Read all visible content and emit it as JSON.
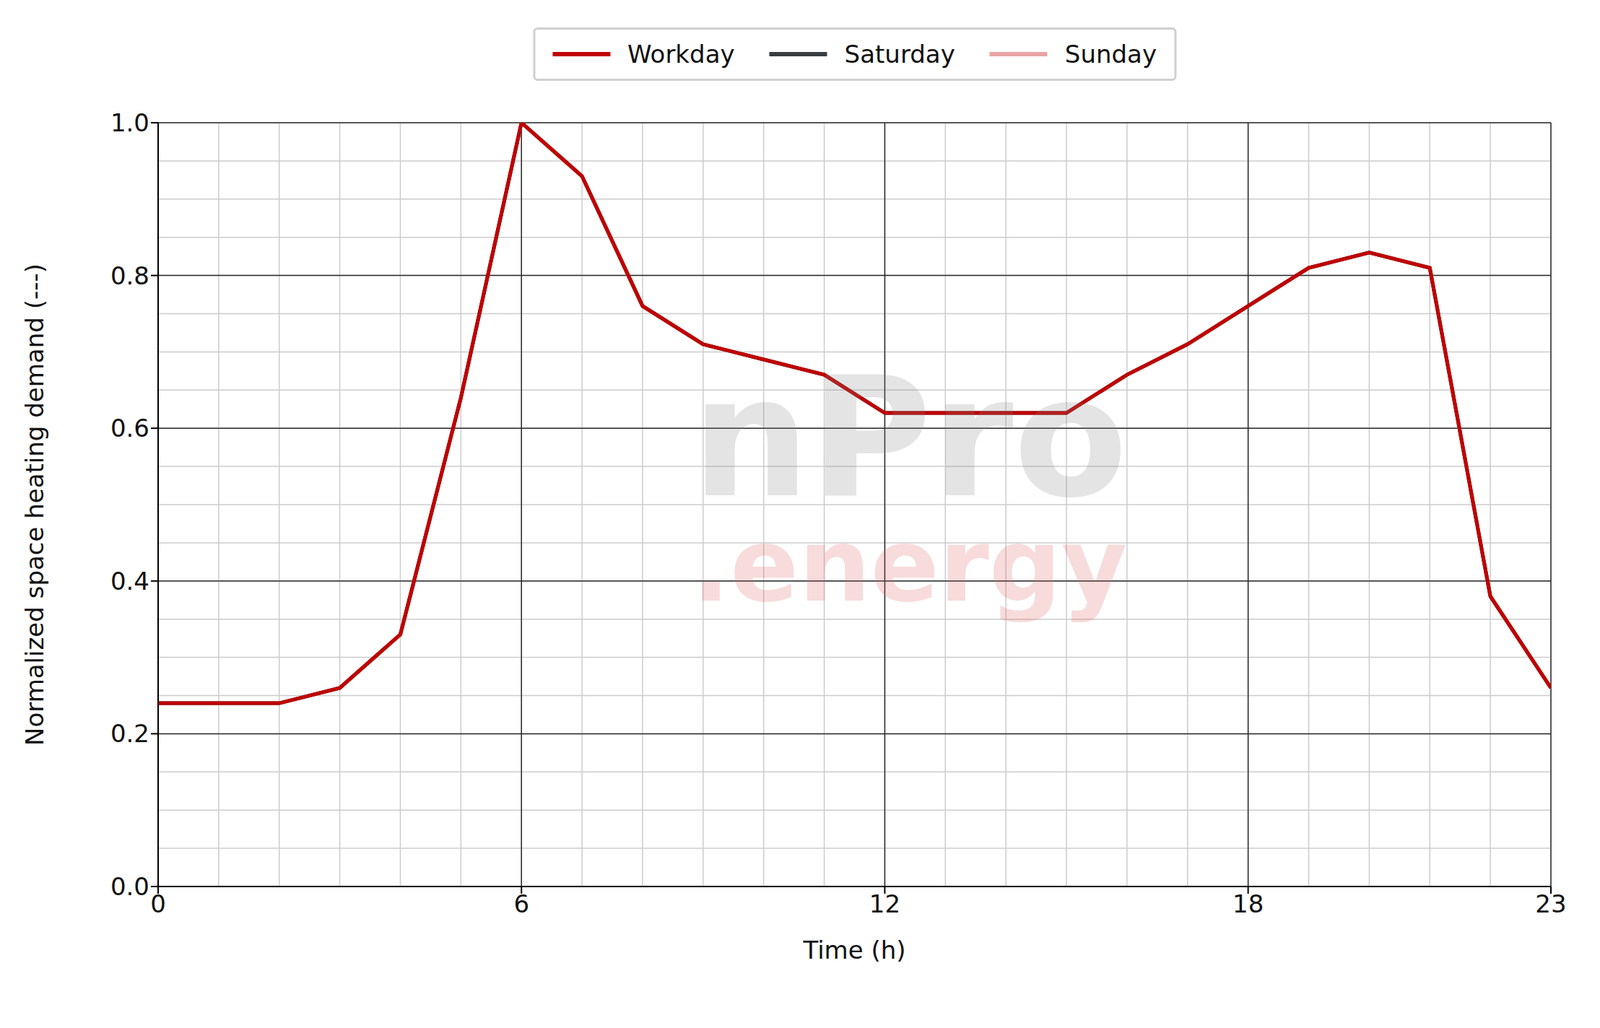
{
  "chart_data": {
    "type": "line",
    "x_label": "Time (h)",
    "y_label": "Normalized space heating demand (---)",
    "annotations": [
      "nPro",
      ".energy"
    ],
    "x": [
      0,
      1,
      2,
      3,
      4,
      5,
      6,
      7,
      8,
      9,
      10,
      11,
      12,
      13,
      14,
      15,
      16,
      17,
      18,
      19,
      20,
      21,
      22,
      23
    ],
    "series": [
      {
        "name": "Workday",
        "color": "#c00000",
        "values": [
          0.24,
          0.24,
          0.24,
          0.26,
          0.33,
          0.64,
          1.0,
          0.93,
          0.76,
          0.71,
          0.69,
          0.67,
          0.62,
          0.62,
          0.62,
          0.62,
          0.67,
          0.71,
          0.76,
          0.81,
          0.83,
          0.81,
          0.38,
          0.26
        ]
      },
      {
        "name": "Saturday",
        "color": "#3a3d40",
        "values": [
          0.24,
          0.24,
          0.24,
          0.26,
          0.33,
          0.64,
          1.0,
          0.93,
          0.76,
          0.71,
          0.69,
          0.67,
          0.62,
          0.62,
          0.62,
          0.62,
          0.67,
          0.71,
          0.76,
          0.81,
          0.83,
          0.81,
          0.38,
          0.26
        ]
      },
      {
        "name": "Sunday",
        "color": "#e8a3a3",
        "values": [
          0.24,
          0.24,
          0.24,
          0.26,
          0.33,
          0.64,
          1.0,
          0.93,
          0.76,
          0.71,
          0.69,
          0.67,
          0.62,
          0.62,
          0.62,
          0.62,
          0.67,
          0.71,
          0.76,
          0.81,
          0.83,
          0.81,
          0.38,
          0.26
        ]
      }
    ],
    "xlim": [
      0,
      23
    ],
    "xticks": [
      0,
      6,
      12,
      18,
      23
    ],
    "ylim": [
      0,
      1
    ],
    "yticks": [
      {
        "value": 0,
        "label": "0.0"
      },
      {
        "value": 0.2,
        "label": "0.2"
      },
      {
        "value": 0.4,
        "label": "0.4"
      },
      {
        "value": 0.6,
        "label": "0.6"
      },
      {
        "value": 0.8,
        "label": "0.8"
      },
      {
        "value": 1,
        "label": "1.0"
      }
    ],
    "grid": true,
    "legend": "top"
  }
}
